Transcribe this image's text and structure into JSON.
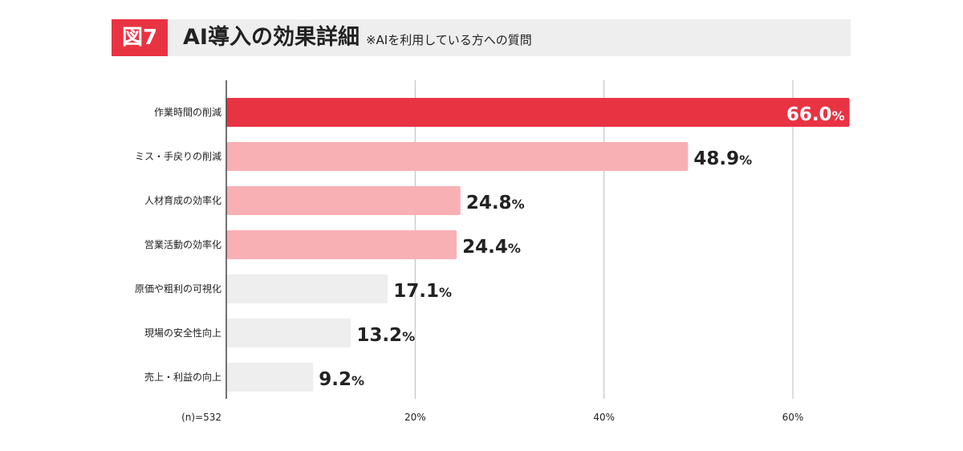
{
  "header": {
    "figure_label": "図7",
    "title": "AI導入の効果詳細",
    "subtitle": "※AIを利用している方への質問"
  },
  "chart_data": {
    "type": "bar",
    "orientation": "horizontal",
    "categories": [
      "作業時間の削減",
      "ミス・手戻りの削減",
      "人材育成の効率化",
      "営業活動の効率化",
      "原価や粗利の可視化",
      "現場の安全性向上",
      "売上・利益の向上"
    ],
    "values": [
      66.0,
      48.9,
      24.8,
      24.4,
      17.1,
      13.2,
      9.2
    ],
    "value_unit": "%",
    "xlim": [
      0,
      66
    ],
    "ticks": [
      {
        "v": 20,
        "label": "20%"
      },
      {
        "v": 40,
        "label": "40%"
      },
      {
        "v": 60,
        "label": "60%"
      }
    ],
    "grid": true,
    "sample_note": "(n)=532",
    "colors": [
      "#e83343",
      "#f8b0b5",
      "#f8b0b5",
      "#f8b0b5",
      "#eeeeee",
      "#eeeeee",
      "#eeeeee"
    ]
  }
}
